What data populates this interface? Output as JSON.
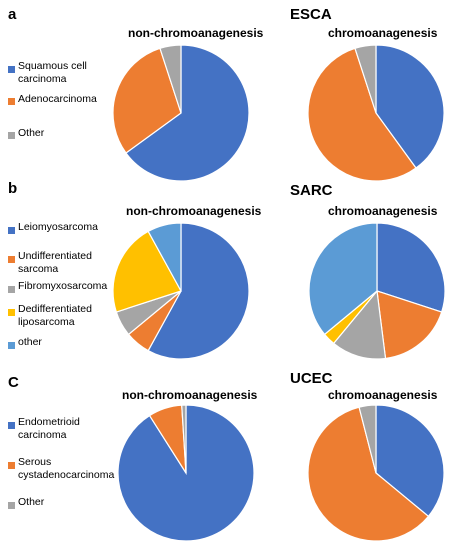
{
  "colors": {
    "blue": "#4472c4",
    "orange": "#ed7d31",
    "gray": "#a5a5a5",
    "yellow": "#ffc000",
    "lightblue": "#5b9bd5"
  },
  "chart_data": [
    {
      "panel": "a",
      "title": "ESCA",
      "type": "pie",
      "legend": [
        "Squamous cell carcinoma",
        "Adenocarcinoma",
        "Other"
      ],
      "subplots": [
        {
          "title": "non-chromoanagenesis",
          "slices": [
            {
              "label": "Squamous cell carcinoma",
              "value": 65,
              "color": "#4472c4"
            },
            {
              "label": "Adenocarcinoma",
              "value": 30,
              "color": "#ed7d31"
            },
            {
              "label": "Other",
              "value": 5,
              "color": "#a5a5a5"
            }
          ]
        },
        {
          "title": "chromoanagenesis",
          "slices": [
            {
              "label": "Squamous cell carcinoma",
              "value": 40,
              "color": "#4472c4"
            },
            {
              "label": "Adenocarcinoma",
              "value": 55,
              "color": "#ed7d31"
            },
            {
              "label": "Other",
              "value": 5,
              "color": "#a5a5a5"
            }
          ]
        }
      ]
    },
    {
      "panel": "b",
      "title": "SARC",
      "type": "pie",
      "legend": [
        "Leiomyosarcoma",
        "Undifferentiated sarcoma",
        "Fibromyxosarcoma",
        "Dedifferentiated liposarcoma",
        "other"
      ],
      "subplots": [
        {
          "title": "non-chromoanagenesis",
          "slices": [
            {
              "label": "Leiomyosarcoma",
              "value": 58,
              "color": "#4472c4"
            },
            {
              "label": "Undifferentiated sarcoma",
              "value": 6,
              "color": "#ed7d31"
            },
            {
              "label": "Fibromyxosarcoma",
              "value": 6,
              "color": "#a5a5a5"
            },
            {
              "label": "Dedifferentiated liposarcoma",
              "value": 22,
              "color": "#ffc000"
            },
            {
              "label": "other",
              "value": 8,
              "color": "#5b9bd5"
            }
          ]
        },
        {
          "title": "chromoanagenesis",
          "slices": [
            {
              "label": "Leiomyosarcoma",
              "value": 30,
              "color": "#4472c4"
            },
            {
              "label": "Undifferentiated sarcoma",
              "value": 18,
              "color": "#ed7d31"
            },
            {
              "label": "Fibromyxosarcoma",
              "value": 13,
              "color": "#a5a5a5"
            },
            {
              "label": "Dedifferentiated liposarcoma",
              "value": 3,
              "color": "#ffc000"
            },
            {
              "label": "other",
              "value": 36,
              "color": "#5b9bd5"
            }
          ]
        }
      ]
    },
    {
      "panel": "C",
      "title": "UCEC",
      "type": "pie",
      "legend": [
        "Endometrioid carcinoma",
        "Serous cystadenocarcinoma",
        "Other"
      ],
      "subplots": [
        {
          "title": "non-chromoanagenesis",
          "slices": [
            {
              "label": "Endometrioid carcinoma",
              "value": 91,
              "color": "#4472c4"
            },
            {
              "label": "Serous cystadenocarcinoma",
              "value": 8,
              "color": "#ed7d31"
            },
            {
              "label": "Other",
              "value": 1,
              "color": "#a5a5a5"
            }
          ]
        },
        {
          "title": "chromoanagenesis",
          "slices": [
            {
              "label": "Endometrioid carcinoma",
              "value": 36,
              "color": "#4472c4"
            },
            {
              "label": "Serous cystadenocarcinoma",
              "value": 60,
              "color": "#ed7d31"
            },
            {
              "label": "Other",
              "value": 4,
              "color": "#a5a5a5"
            }
          ]
        }
      ]
    }
  ]
}
